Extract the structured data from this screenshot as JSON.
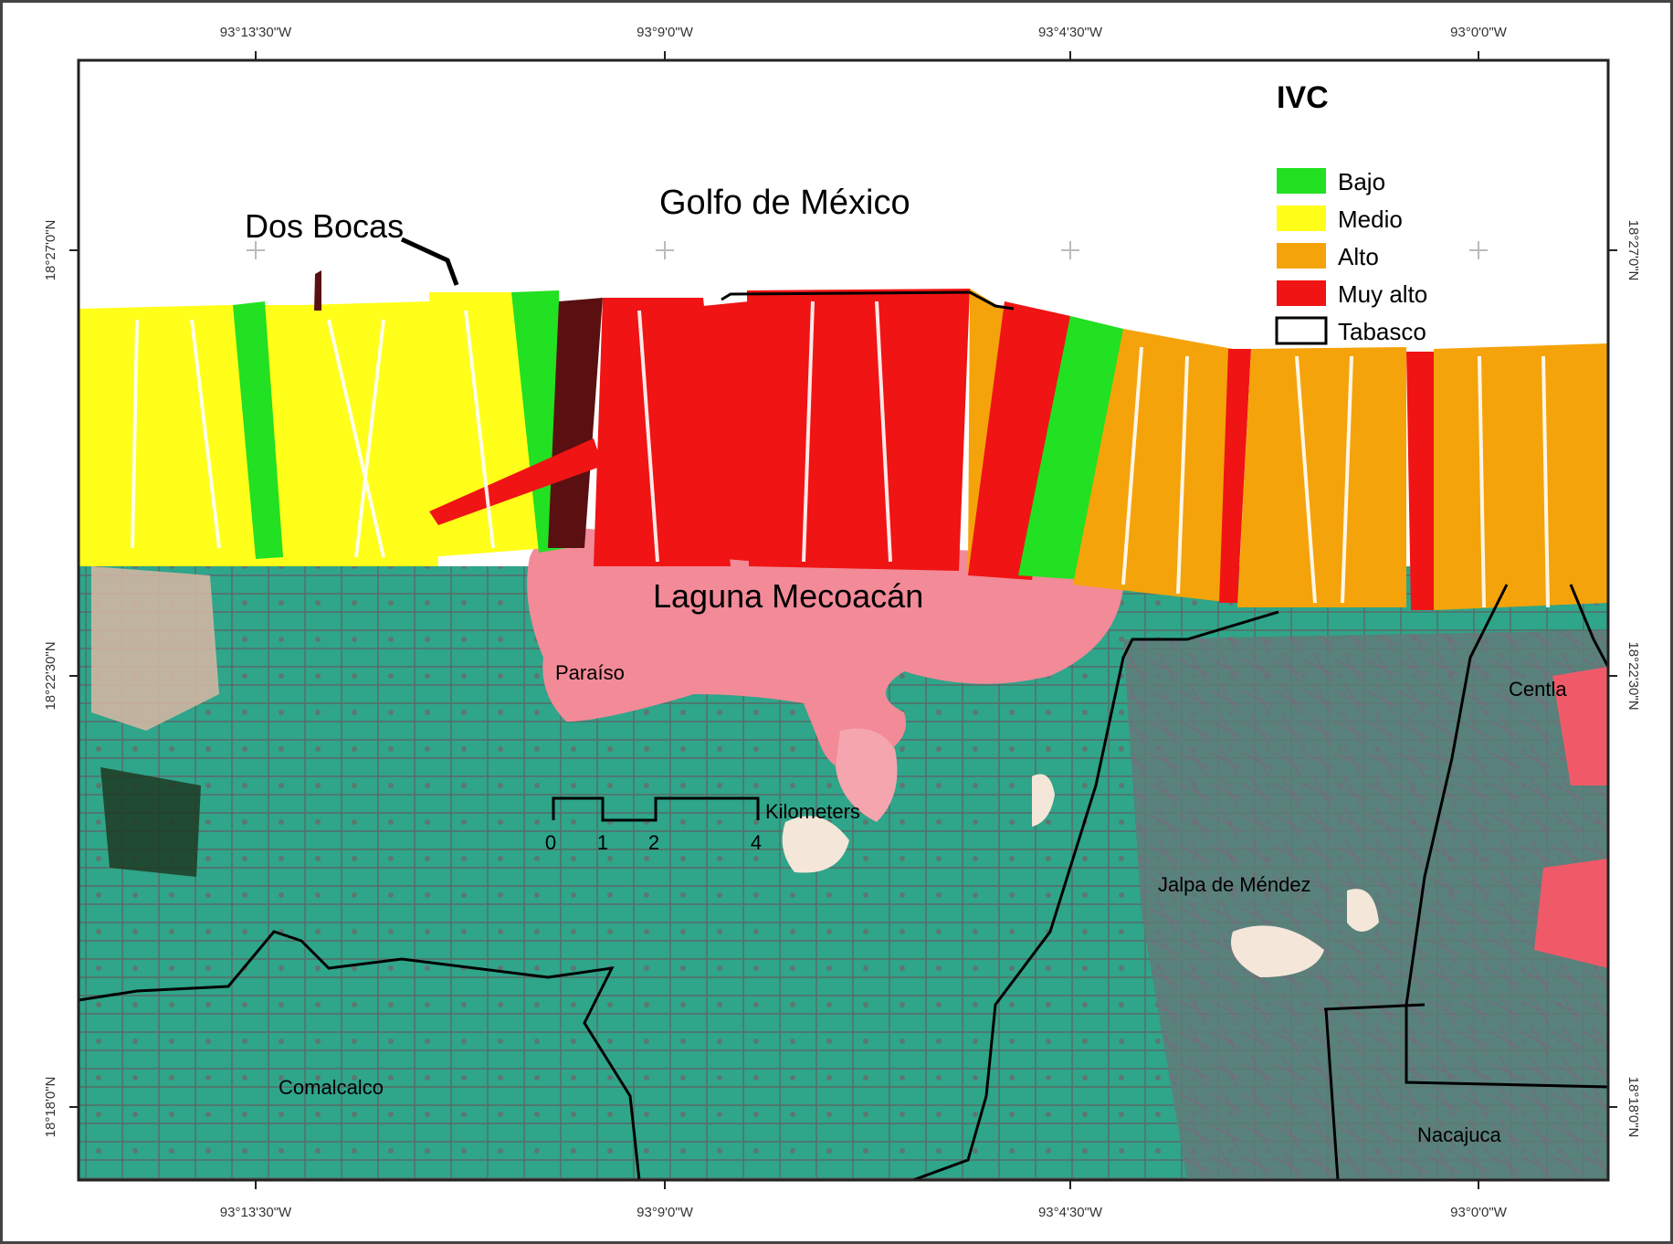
{
  "map": {
    "title": "IVC",
    "sea_label": "Golfo de México",
    "port_label": "Dos Bocas",
    "lagoon_label": "Laguna Mecoacán",
    "towns": [
      "Paraíso",
      "Centla",
      "Jalpa de Méndez",
      "Comalcalco",
      "Nacajuca"
    ],
    "top_ticks": [
      "93°13'30\"W",
      "93°9'0\"W",
      "93°4'30\"W",
      "93°0'0\"W"
    ],
    "bottom_ticks": [
      "93°13'30\"W",
      "93°9'0\"W",
      "93°4'30\"W",
      "93°0'0\"W"
    ],
    "left_ticks": [
      "18°27'0\"N",
      "18°22'30\"N",
      "18°18'0\"N"
    ],
    "right_ticks": [
      "18°27'0\"N",
      "18°22'30\"N",
      "18°18'0\"N"
    ],
    "scale": {
      "unit": "Kilometers",
      "labels": [
        "0",
        "1",
        "2",
        "4"
      ]
    }
  },
  "legend": {
    "items": [
      {
        "label": "Bajo",
        "color": "#22e022"
      },
      {
        "label": "Medio",
        "color": "#ffff1a"
      },
      {
        "label": "Alto",
        "color": "#f5a30a"
      },
      {
        "label": "Muy alto",
        "color": "#f01414"
      },
      {
        "label": "Tabasco",
        "color": "#ffffff"
      }
    ]
  }
}
